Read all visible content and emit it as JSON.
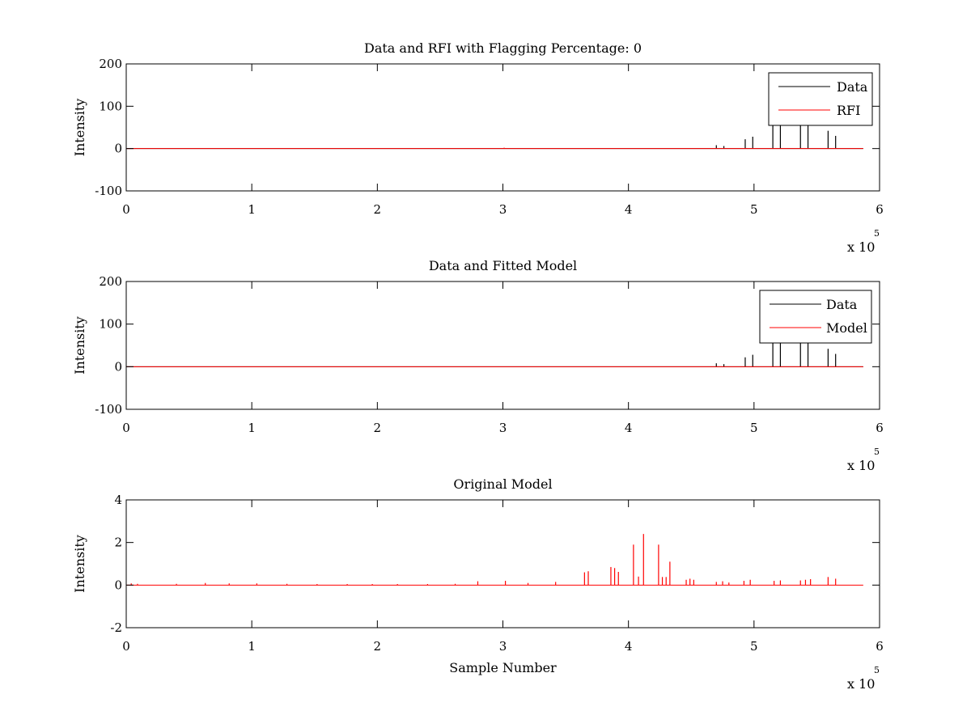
{
  "colors": {
    "data": "#000000",
    "rfi": "#ff0000",
    "model": "#ff0000",
    "axes": "#000000",
    "background": "#ffffff"
  },
  "chart_data": [
    {
      "type": "line",
      "title": "Data and RFI with Flagging Percentage: 0",
      "xlabel": "",
      "ylabel": "Intensity",
      "xlim": [
        0,
        600000
      ],
      "ylim": [
        -100,
        200
      ],
      "xticks": [
        0,
        100000,
        200000,
        300000,
        400000,
        500000,
        600000
      ],
      "xtick_labels": [
        "0",
        "1",
        "2",
        "3",
        "4",
        "5",
        "6"
      ],
      "yticks": [
        -100,
        0,
        100,
        200
      ],
      "ytick_labels": [
        "-100",
        "0",
        "100",
        "200"
      ],
      "x_exponent": {
        "base": "x 10",
        "power": "5"
      },
      "grid": false,
      "legend": {
        "placement": "top-right",
        "entries": [
          "Data",
          "RFI"
        ]
      },
      "baseline_range": [
        0,
        587000
      ],
      "series": [
        {
          "name": "Data",
          "color": "#000000",
          "spikes": [
            [
              470000,
              8
            ],
            [
              476000,
              6
            ],
            [
              493000,
              22
            ],
            [
              499000,
              28
            ],
            [
              515000,
              60
            ],
            [
              521000,
              60
            ],
            [
              537000,
              60
            ],
            [
              543000,
              60
            ],
            [
              559000,
              42
            ],
            [
              565000,
              30
            ]
          ]
        },
        {
          "name": "RFI",
          "color": "#ff0000",
          "spikes": [
            [
              301000,
              2
            ]
          ]
        }
      ]
    },
    {
      "type": "line",
      "title": "Data and Fitted Model",
      "xlabel": "",
      "ylabel": "Intensity",
      "xlim": [
        0,
        600000
      ],
      "ylim": [
        -100,
        200
      ],
      "xticks": [
        0,
        100000,
        200000,
        300000,
        400000,
        500000,
        600000
      ],
      "xtick_labels": [
        "0",
        "1",
        "2",
        "3",
        "4",
        "5",
        "6"
      ],
      "yticks": [
        -100,
        0,
        100,
        200
      ],
      "ytick_labels": [
        "-100",
        "0",
        "100",
        "200"
      ],
      "x_exponent": {
        "base": "x 10",
        "power": "5"
      },
      "grid": false,
      "legend": {
        "placement": "top-right",
        "entries": [
          "Data",
          "Model"
        ]
      },
      "baseline_range": [
        0,
        587000
      ],
      "series": [
        {
          "name": "Data",
          "color": "#000000",
          "spikes": [
            [
              470000,
              8
            ],
            [
              476000,
              6
            ],
            [
              493000,
              22
            ],
            [
              499000,
              28
            ],
            [
              515000,
              60
            ],
            [
              521000,
              60
            ],
            [
              537000,
              60
            ],
            [
              543000,
              60
            ],
            [
              559000,
              42
            ],
            [
              565000,
              30
            ]
          ]
        },
        {
          "name": "Model",
          "color": "#ff0000",
          "spikes": []
        }
      ]
    },
    {
      "type": "line",
      "title": "Original Model",
      "xlabel": "Sample Number",
      "ylabel": "Intensity",
      "xlim": [
        0,
        600000
      ],
      "ylim": [
        -2,
        4
      ],
      "xticks": [
        0,
        100000,
        200000,
        300000,
        400000,
        500000,
        600000
      ],
      "xtick_labels": [
        "0",
        "1",
        "2",
        "3",
        "4",
        "5",
        "6"
      ],
      "yticks": [
        -2,
        0,
        2,
        4
      ],
      "ytick_labels": [
        "-2",
        "0",
        "2",
        "4"
      ],
      "x_exponent": {
        "base": "x 10",
        "power": "5"
      },
      "grid": false,
      "legend": null,
      "baseline_range": [
        0,
        587000
      ],
      "series": [
        {
          "name": "",
          "color": "#ff0000",
          "spikes": [
            [
              4000,
              0.08
            ],
            [
              9000,
              0.06
            ],
            [
              40000,
              0.06
            ],
            [
              63000,
              0.1
            ],
            [
              82000,
              0.08
            ],
            [
              104000,
              0.08
            ],
            [
              128000,
              0.06
            ],
            [
              152000,
              0.05
            ],
            [
              176000,
              0.05
            ],
            [
              196000,
              0.05
            ],
            [
              216000,
              0.05
            ],
            [
              240000,
              0.05
            ],
            [
              262000,
              0.06
            ],
            [
              280000,
              0.18
            ],
            [
              302000,
              0.2
            ],
            [
              320000,
              0.1
            ],
            [
              342000,
              0.15
            ],
            [
              365000,
              0.6
            ],
            [
              368000,
              0.65
            ],
            [
              386000,
              0.85
            ],
            [
              389000,
              0.8
            ],
            [
              392000,
              0.62
            ],
            [
              404000,
              1.9
            ],
            [
              408000,
              0.4
            ],
            [
              412000,
              2.4
            ],
            [
              424000,
              1.9
            ],
            [
              427000,
              0.38
            ],
            [
              430000,
              0.38
            ],
            [
              433000,
              1.1
            ],
            [
              446000,
              0.25
            ],
            [
              449000,
              0.3
            ],
            [
              452000,
              0.25
            ],
            [
              470000,
              0.15
            ],
            [
              475000,
              0.18
            ],
            [
              480000,
              0.12
            ],
            [
              492000,
              0.2
            ],
            [
              497000,
              0.25
            ],
            [
              516000,
              0.2
            ],
            [
              521000,
              0.22
            ],
            [
              537000,
              0.22
            ],
            [
              541000,
              0.25
            ],
            [
              545000,
              0.28
            ],
            [
              559000,
              0.38
            ],
            [
              565000,
              0.3
            ]
          ]
        }
      ]
    }
  ]
}
